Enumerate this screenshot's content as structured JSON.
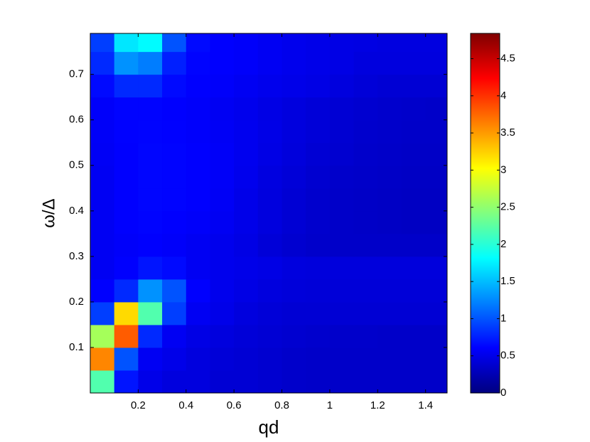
{
  "chart_data": {
    "type": "heatmap",
    "colormap": "jet",
    "xlabel": "qd",
    "ylabel": "ω/Δ",
    "xlim": [
      0,
      1.49
    ],
    "ylim": [
      0,
      0.79
    ],
    "clim": [
      0,
      4.84
    ],
    "xticks": [
      0.2,
      0.4,
      0.6,
      0.8,
      1,
      1.2,
      1.4
    ],
    "yticks": [
      0.1,
      0.2,
      0.3,
      0.4,
      0.5,
      0.6,
      0.7
    ],
    "cticks": [
      0,
      0.5,
      1,
      1.5,
      2,
      2.5,
      3,
      3.5,
      4,
      4.5
    ],
    "x_edges": [
      0,
      0.1,
      0.2,
      0.3,
      0.4,
      0.5,
      0.6,
      0.7,
      0.8,
      0.9,
      1,
      1.1,
      1.2,
      1.3,
      1.4,
      1.5
    ],
    "y_edges": [
      0,
      0.05,
      0.1,
      0.15,
      0.2,
      0.25,
      0.3,
      0.35,
      0.4,
      0.45,
      0.5,
      0.55,
      0.6,
      0.65,
      0.7,
      0.75,
      0.8
    ],
    "z": [
      [
        2.2,
        0.7,
        0.5,
        0.45,
        0.45,
        0.4,
        0.4,
        0.38,
        0.36,
        0.35,
        0.35,
        0.35,
        0.35,
        0.35,
        0.35
      ],
      [
        3.6,
        1.0,
        0.55,
        0.5,
        0.45,
        0.42,
        0.4,
        0.38,
        0.36,
        0.35,
        0.35,
        0.35,
        0.35,
        0.35,
        0.35
      ],
      [
        2.6,
        3.8,
        0.8,
        0.55,
        0.48,
        0.45,
        0.42,
        0.4,
        0.38,
        0.37,
        0.36,
        0.36,
        0.35,
        0.35,
        0.35
      ],
      [
        0.9,
        3.2,
        2.2,
        0.9,
        0.55,
        0.5,
        0.45,
        0.42,
        0.4,
        0.4,
        0.4,
        0.4,
        0.4,
        0.4,
        0.4
      ],
      [
        0.6,
        0.8,
        1.3,
        1.0,
        0.6,
        0.52,
        0.48,
        0.45,
        0.43,
        0.42,
        0.42,
        0.42,
        0.42,
        0.42,
        0.42
      ],
      [
        0.55,
        0.6,
        0.7,
        0.65,
        0.55,
        0.52,
        0.5,
        0.48,
        0.45,
        0.44,
        0.44,
        0.44,
        0.44,
        0.44,
        0.44
      ],
      [
        0.55,
        0.58,
        0.6,
        0.58,
        0.55,
        0.52,
        0.48,
        0.42,
        0.38,
        0.36,
        0.35,
        0.35,
        0.35,
        0.35,
        0.35
      ],
      [
        0.55,
        0.6,
        0.62,
        0.6,
        0.58,
        0.55,
        0.5,
        0.45,
        0.4,
        0.37,
        0.35,
        0.34,
        0.33,
        0.32,
        0.32
      ],
      [
        0.55,
        0.6,
        0.63,
        0.62,
        0.6,
        0.56,
        0.5,
        0.45,
        0.4,
        0.37,
        0.35,
        0.34,
        0.33,
        0.32,
        0.32
      ],
      [
        0.55,
        0.6,
        0.63,
        0.62,
        0.6,
        0.57,
        0.52,
        0.46,
        0.42,
        0.38,
        0.36,
        0.35,
        0.34,
        0.33,
        0.33
      ],
      [
        0.56,
        0.6,
        0.63,
        0.62,
        0.6,
        0.57,
        0.53,
        0.48,
        0.44,
        0.4,
        0.38,
        0.36,
        0.35,
        0.34,
        0.34
      ],
      [
        0.57,
        0.61,
        0.62,
        0.61,
        0.59,
        0.56,
        0.53,
        0.49,
        0.45,
        0.42,
        0.39,
        0.37,
        0.36,
        0.35,
        0.35
      ],
      [
        0.58,
        0.62,
        0.62,
        0.6,
        0.58,
        0.55,
        0.52,
        0.48,
        0.45,
        0.42,
        0.4,
        0.38,
        0.37,
        0.36,
        0.35
      ],
      [
        0.65,
        0.8,
        0.8,
        0.65,
        0.6,
        0.58,
        0.55,
        0.52,
        0.5,
        0.48,
        0.45,
        0.42,
        0.4,
        0.4,
        0.4
      ],
      [
        0.8,
        1.3,
        1.2,
        0.75,
        0.62,
        0.6,
        0.58,
        0.55,
        0.52,
        0.5,
        0.48,
        0.45,
        0.45,
        0.45,
        0.45
      ],
      [
        0.9,
        1.7,
        1.8,
        1.0,
        0.65,
        0.6,
        0.58,
        0.55,
        0.52,
        0.5,
        0.48,
        0.47,
        0.46,
        0.46,
        0.46
      ]
    ]
  }
}
